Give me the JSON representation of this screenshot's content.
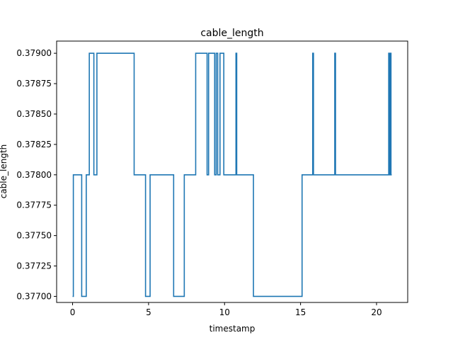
{
  "chart_data": {
    "type": "line",
    "title": "cable_length",
    "xlabel": "timestamp",
    "ylabel": "cable_length",
    "xlim": [
      -1.05,
      22.05
    ],
    "ylim": [
      0.37695,
      0.3791
    ],
    "xticks": [
      0,
      5,
      10,
      15,
      20
    ],
    "yticks": [
      0.377,
      0.37725,
      0.3775,
      0.37775,
      0.378,
      0.37825,
      0.3785,
      0.37875,
      0.379
    ],
    "ytick_labels": [
      "0.37700",
      "0.37725",
      "0.37750",
      "0.37775",
      "0.37800",
      "0.37825",
      "0.37850",
      "0.37875",
      "0.37900"
    ],
    "grid": false,
    "step": "post",
    "series": [
      {
        "color": "#1f77b4",
        "x": [
          0.0,
          0.05,
          0.6,
          0.9,
          1.1,
          1.4,
          1.6,
          4.05,
          4.8,
          5.1,
          6.65,
          7.35,
          8.1,
          8.85,
          8.95,
          9.35,
          9.45,
          9.55,
          9.7,
          9.95,
          10.75,
          10.8,
          11.9,
          15.1,
          15.8,
          15.85,
          17.25,
          17.3,
          20.8,
          20.85,
          20.9,
          20.95,
          21.0
        ],
        "y": [
          0.377,
          0.378,
          0.377,
          0.378,
          0.379,
          0.378,
          0.379,
          0.378,
          0.377,
          0.378,
          0.377,
          0.378,
          0.379,
          0.378,
          0.379,
          0.378,
          0.379,
          0.378,
          0.379,
          0.378,
          0.379,
          0.378,
          0.377,
          0.378,
          0.379,
          0.378,
          0.379,
          0.378,
          0.379,
          0.378,
          0.379,
          0.378,
          0.378
        ]
      }
    ]
  }
}
